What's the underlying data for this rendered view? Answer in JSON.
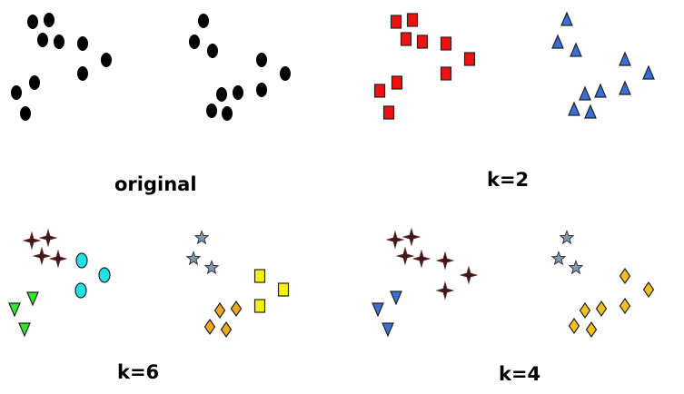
{
  "panels": {
    "original": {
      "label": "original"
    },
    "k2": {
      "label": "k=2"
    },
    "k6": {
      "label": "k=6"
    },
    "k4": {
      "label": "k=4"
    }
  },
  "colors": {
    "black": "#000000",
    "red": "#ee1111",
    "blue": "#3a6fd8",
    "green": "#2ee82e",
    "cyan": "#22e0e8",
    "dark_star": "#3a1a1a",
    "gray_star": "#7f9aaa",
    "orange": "#f0a820",
    "gold": "#f0c020",
    "yellow": "#f6f010"
  }
}
